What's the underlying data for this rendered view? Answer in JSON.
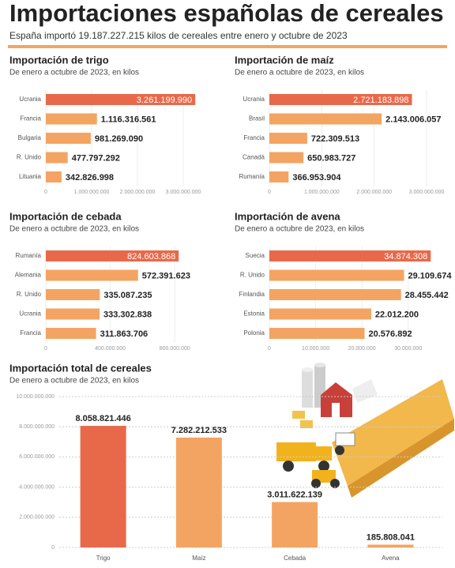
{
  "title": "Importaciones españolas de cereales",
  "subtitle": "España importó 19.187.227.215 kilos de cereales entre enero y octubre de 2023",
  "chart_data": [
    {
      "type": "bar",
      "orientation": "horizontal",
      "title": "Importación de trigo",
      "subtitle": "De enero a octubre de 2023, en kilos",
      "categories": [
        "Ucrania",
        "Francia",
        "Bulgaria",
        "R. Unido",
        "Lituania"
      ],
      "values": [
        3261199990,
        1116316561,
        981269090,
        477797292,
        342826998
      ],
      "value_labels": [
        "3.261.199.990",
        "1.116.316.561",
        "981.269.090",
        "477.797.292",
        "342.826.998"
      ],
      "colors": [
        "#e8694a",
        "#f4a462",
        "#f4a462",
        "#f4a462",
        "#f4a462"
      ],
      "xlim": [
        0,
        3500000000
      ],
      "xticks": [
        0,
        {
          "value": 1000000000,
          "label": "1.000.000.000"
        },
        {
          "value": 2000000000,
          "label": "2.000.000.000"
        },
        {
          "value": 3000000000,
          "label": "3.000.000.000"
        }
      ]
    },
    {
      "type": "bar",
      "orientation": "horizontal",
      "title": "Importación de maíz",
      "subtitle": "De enero a octubre de 2023, en kilos",
      "categories": [
        "Ucrania",
        "Brasil",
        "Francia",
        "Canadá",
        "Rumanía"
      ],
      "values": [
        2721183898,
        2143006057,
        722309513,
        650983727,
        366953904
      ],
      "value_labels": [
        "2.721.183.898",
        "2.143.006.057",
        "722.309.513",
        "650.983.727",
        "366.953.904"
      ],
      "colors": [
        "#e8694a",
        "#f4a462",
        "#f4a462",
        "#f4a462",
        "#f4a462"
      ],
      "xlim": [
        0,
        3000000000
      ],
      "xticks": [
        0,
        {
          "value": 1000000000,
          "label": "1.000.000.000"
        },
        {
          "value": 2000000000,
          "label": "2.000.000.000"
        },
        {
          "value": 3000000000,
          "label": "3.000.000.000"
        }
      ]
    },
    {
      "type": "bar",
      "orientation": "horizontal",
      "title": "Importación de cebada",
      "subtitle": "De enero a octubre de 2023, en kilos",
      "categories": [
        "Rumanía",
        "Alemania",
        "R. Unido",
        "Ucrania",
        "Francia"
      ],
      "values": [
        824603868,
        572391623,
        335087235,
        333302838,
        311863706
      ],
      "value_labels": [
        "824.603.868",
        "572.391.623",
        "335.087.235",
        "333.302.838",
        "311.863.706"
      ],
      "colors": [
        "#e8694a",
        "#f4a462",
        "#f4a462",
        "#f4a462",
        "#f4a462"
      ],
      "xlim": [
        0,
        1000000000
      ],
      "xticks": [
        0,
        {
          "value": 400000000,
          "label": "400.000.000"
        },
        {
          "value": 800000000,
          "label": "800.000.000"
        }
      ]
    },
    {
      "type": "bar",
      "orientation": "horizontal",
      "title": "Importación de avena",
      "subtitle": "De enero a octubre de 2023, en kilos",
      "categories": [
        "Suecia",
        "R. Unido",
        "Finlandia",
        "Estonia",
        "Polonia"
      ],
      "values": [
        34874308,
        29109674,
        28455442,
        22012200,
        20576892
      ],
      "value_labels": [
        "34.874.308",
        "29.109.674",
        "28.455.442",
        "22.012.200",
        "20.576.892"
      ],
      "colors": [
        "#e8694a",
        "#f4a462",
        "#f4a462",
        "#f4a462",
        "#f4a462"
      ],
      "xlim": [
        0,
        35000000
      ],
      "xticks": [
        0,
        {
          "value": 10000000,
          "label": "10.000.000"
        },
        {
          "value": 20000000,
          "label": "20.000.000"
        },
        {
          "value": 30000000,
          "label": "30.000.000"
        }
      ]
    },
    {
      "type": "bar",
      "orientation": "vertical",
      "title": "Importación total de cereales",
      "subtitle": "De enero a octubre de 2023, en kilos",
      "categories": [
        "Trigo",
        "Maíz",
        "Cebada",
        "Avena"
      ],
      "values": [
        8058821446,
        7282212533,
        3011622139,
        185808041
      ],
      "value_labels": [
        "8.058.821.446",
        "7.282.212.533",
        "3.011.622.139",
        "185.808.041"
      ],
      "colors": [
        "#e8694a",
        "#f4a462",
        "#f4a462",
        "#f4a462"
      ],
      "ylim": [
        0,
        10000000000
      ],
      "yticks": [
        0,
        {
          "value": 2000000000,
          "label": "2.000.000.000"
        },
        {
          "value": 4000000000,
          "label": "4.000.000.000"
        },
        {
          "value": 6000000000,
          "label": "6.000.000.000"
        },
        {
          "value": 8000000000,
          "label": "8.000.000.000"
        },
        {
          "value": 10000000000,
          "label": "10.000.000.000"
        }
      ],
      "grid": true
    }
  ]
}
